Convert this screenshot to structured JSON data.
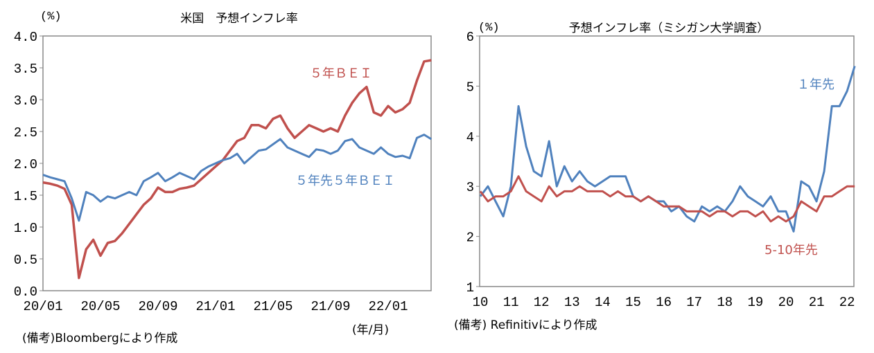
{
  "chart_data": [
    {
      "type": "line",
      "title": "米国　予想インフレ率",
      "unit_label": "(%)",
      "xlabel": "(年/月)",
      "note": "(備考)Bloombergにより作成",
      "ylim": [
        0,
        4.0
      ],
      "yticks": [
        "0.0",
        "0.5",
        "1.0",
        "1.5",
        "2.0",
        "2.5",
        "3.0",
        "3.5",
        "4.0"
      ],
      "xticks": [
        "20/01",
        "20/05",
        "20/09",
        "21/01",
        "21/05",
        "21/09",
        "22/01"
      ],
      "grid": false,
      "x": [
        "2020-01-01",
        "2020-01-16",
        "2020-02-01",
        "2020-02-16",
        "2020-03-01",
        "2020-03-16",
        "2020-04-01",
        "2020-04-16",
        "2020-05-01",
        "2020-05-16",
        "2020-06-01",
        "2020-06-16",
        "2020-07-01",
        "2020-07-16",
        "2020-08-01",
        "2020-08-16",
        "2020-09-01",
        "2020-09-16",
        "2020-10-01",
        "2020-10-16",
        "2020-11-01",
        "2020-11-16",
        "2020-12-01",
        "2020-12-16",
        "2021-01-01",
        "2021-01-16",
        "2021-02-01",
        "2021-02-16",
        "2021-03-01",
        "2021-03-16",
        "2021-04-01",
        "2021-04-16",
        "2021-05-01",
        "2021-05-16",
        "2021-06-01",
        "2021-06-16",
        "2021-07-01",
        "2021-07-16",
        "2021-08-01",
        "2021-08-16",
        "2021-09-01",
        "2021-09-16",
        "2021-10-01",
        "2021-10-16",
        "2021-11-01",
        "2021-11-16",
        "2021-12-01",
        "2021-12-16",
        "2022-01-01",
        "2022-01-16",
        "2022-02-01",
        "2022-02-16",
        "2022-03-01",
        "2022-03-16",
        "2022-04-01"
      ],
      "series": [
        {
          "name": "５年ＢＥＩ",
          "color": "#c0504d",
          "values": [
            1.7,
            1.68,
            1.65,
            1.6,
            1.35,
            0.2,
            0.65,
            0.8,
            0.55,
            0.75,
            0.78,
            0.9,
            1.05,
            1.2,
            1.35,
            1.45,
            1.62,
            1.55,
            1.55,
            1.6,
            1.62,
            1.65,
            1.75,
            1.85,
            1.95,
            2.05,
            2.2,
            2.35,
            2.4,
            2.6,
            2.6,
            2.55,
            2.7,
            2.75,
            2.55,
            2.4,
            2.5,
            2.6,
            2.55,
            2.5,
            2.55,
            2.5,
            2.75,
            2.95,
            3.1,
            3.2,
            2.8,
            2.75,
            2.9,
            2.8,
            2.85,
            2.95,
            3.3,
            3.6,
            3.62
          ]
        },
        {
          "name": "５年先５年ＢＥＩ",
          "color": "#4f81bd",
          "values": [
            1.82,
            1.78,
            1.75,
            1.72,
            1.45,
            1.1,
            1.55,
            1.5,
            1.4,
            1.48,
            1.45,
            1.5,
            1.55,
            1.5,
            1.72,
            1.78,
            1.85,
            1.72,
            1.78,
            1.85,
            1.8,
            1.75,
            1.88,
            1.95,
            2.0,
            2.05,
            2.08,
            2.15,
            2.0,
            2.1,
            2.2,
            2.22,
            2.3,
            2.38,
            2.25,
            2.2,
            2.15,
            2.1,
            2.22,
            2.2,
            2.15,
            2.2,
            2.35,
            2.38,
            2.25,
            2.2,
            2.15,
            2.25,
            2.15,
            2.1,
            2.12,
            2.08,
            2.4,
            2.45,
            2.38
          ]
        }
      ]
    },
    {
      "type": "line",
      "title": "予想インフレ率（ミシガン大学調査）",
      "unit_label": "(%)",
      "note": "(備考) Refinitivにより作成",
      "ylim": [
        1,
        6
      ],
      "yticks": [
        "1",
        "2",
        "3",
        "4",
        "5",
        "6"
      ],
      "xticks": [
        "10",
        "11",
        "12",
        "13",
        "14",
        "15",
        "16",
        "17",
        "18",
        "19",
        "20",
        "21",
        "22"
      ],
      "grid": false,
      "x": [
        2010,
        2010.25,
        2010.5,
        2010.75,
        2011,
        2011.25,
        2011.5,
        2011.75,
        2012,
        2012.25,
        2012.5,
        2012.75,
        2013,
        2013.25,
        2013.5,
        2013.75,
        2014,
        2014.25,
        2014.5,
        2014.75,
        2015,
        2015.25,
        2015.5,
        2015.75,
        2016,
        2016.25,
        2016.5,
        2016.75,
        2017,
        2017.25,
        2017.5,
        2017.75,
        2018,
        2018.25,
        2018.5,
        2018.75,
        2019,
        2019.25,
        2019.5,
        2019.75,
        2020,
        2020.25,
        2020.5,
        2020.75,
        2021,
        2021.25,
        2021.5,
        2021.75,
        2022,
        2022.25
      ],
      "series": [
        {
          "name": "１年先",
          "color": "#4f81bd",
          "values": [
            2.8,
            3.0,
            2.7,
            2.4,
            3.0,
            4.6,
            3.8,
            3.3,
            3.2,
            3.9,
            3.0,
            3.4,
            3.1,
            3.3,
            3.1,
            3.0,
            3.1,
            3.2,
            3.2,
            3.2,
            2.8,
            2.7,
            2.8,
            2.7,
            2.7,
            2.5,
            2.6,
            2.4,
            2.3,
            2.6,
            2.5,
            2.6,
            2.5,
            2.7,
            3.0,
            2.8,
            2.7,
            2.6,
            2.8,
            2.5,
            2.5,
            2.1,
            3.1,
            3.0,
            2.7,
            3.3,
            4.6,
            4.6,
            4.9,
            5.4
          ]
        },
        {
          "name": "5-10年先",
          "color": "#c0504d",
          "values": [
            2.9,
            2.7,
            2.8,
            2.8,
            2.9,
            3.2,
            2.9,
            2.8,
            2.7,
            3.0,
            2.8,
            2.9,
            2.9,
            3.0,
            2.9,
            2.9,
            2.9,
            2.8,
            2.9,
            2.8,
            2.8,
            2.7,
            2.8,
            2.7,
            2.6,
            2.6,
            2.6,
            2.5,
            2.5,
            2.5,
            2.4,
            2.5,
            2.5,
            2.4,
            2.5,
            2.5,
            2.4,
            2.5,
            2.3,
            2.4,
            2.3,
            2.4,
            2.7,
            2.6,
            2.5,
            2.8,
            2.8,
            2.9,
            3.0,
            3.0
          ]
        }
      ]
    }
  ]
}
